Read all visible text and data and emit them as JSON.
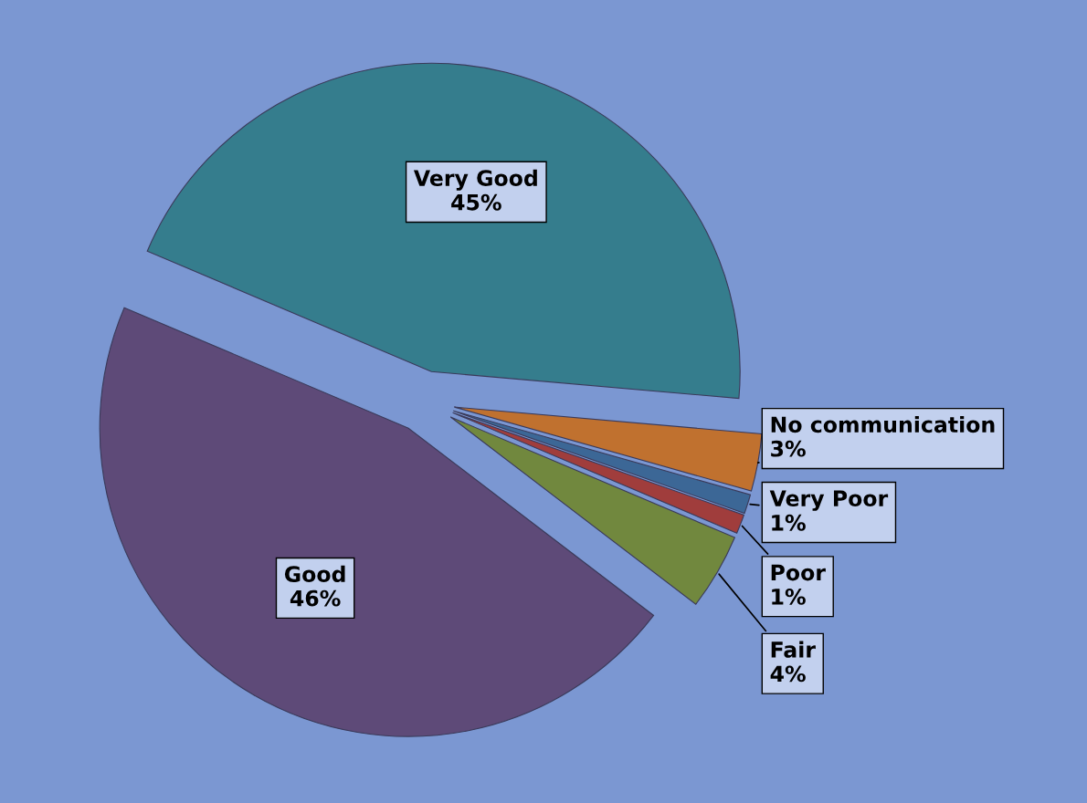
{
  "chart_data": {
    "type": "pie",
    "categories": [
      "Very Good",
      "No communication",
      "Very Poor",
      "Poor",
      "Fair",
      "Good"
    ],
    "values": [
      45,
      3,
      1,
      1,
      4,
      46
    ],
    "value_labels": [
      "45%",
      "3%",
      "1%",
      "1%",
      "4%",
      "46%"
    ],
    "colors": [
      "#357d8d",
      "#c0712f",
      "#3c6796",
      "#a03d3c",
      "#71883e",
      "#5e4a78"
    ],
    "legend": false
  }
}
